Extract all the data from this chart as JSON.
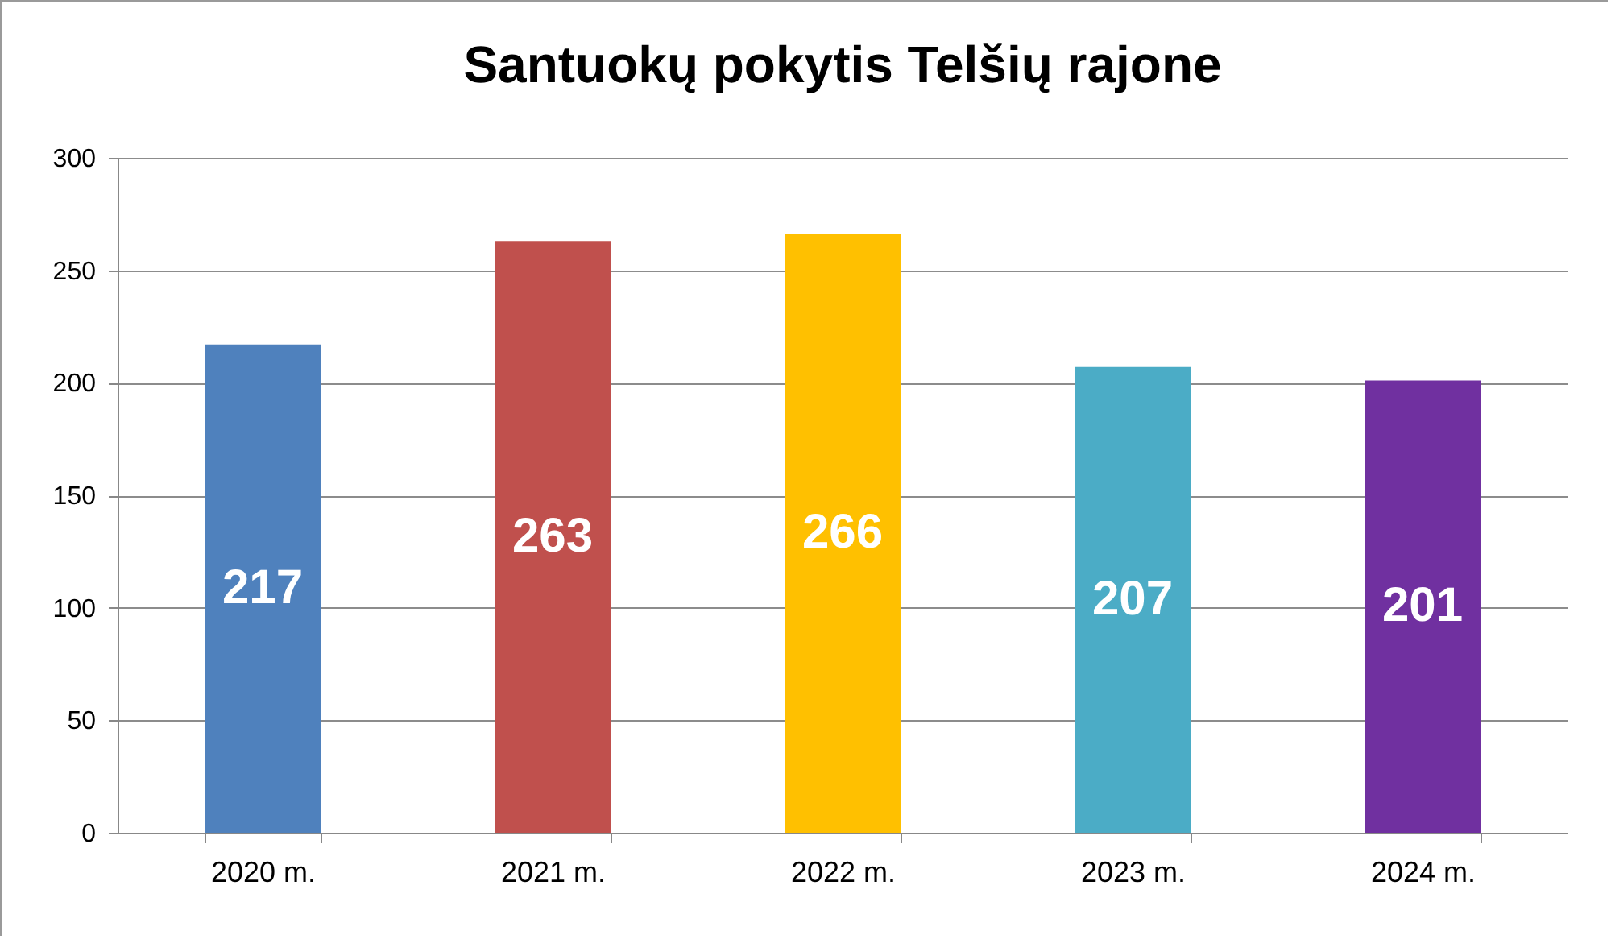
{
  "chart_data": {
    "type": "bar",
    "title": "Santuokų pokytis Telšių rajone",
    "categories": [
      "2020 m.",
      "2021 m.",
      "2022 m.",
      "2023 m.",
      "2024 m."
    ],
    "values": [
      217,
      263,
      266,
      207,
      201
    ],
    "colors": [
      "#4f81bd",
      "#c0504d",
      "#ffc000",
      "#4bacc6",
      "#7030a0"
    ],
    "ylim": [
      0,
      300
    ],
    "yticks": [
      0,
      50,
      100,
      150,
      200,
      250,
      300
    ],
    "grid": "y",
    "data_labels": true
  }
}
